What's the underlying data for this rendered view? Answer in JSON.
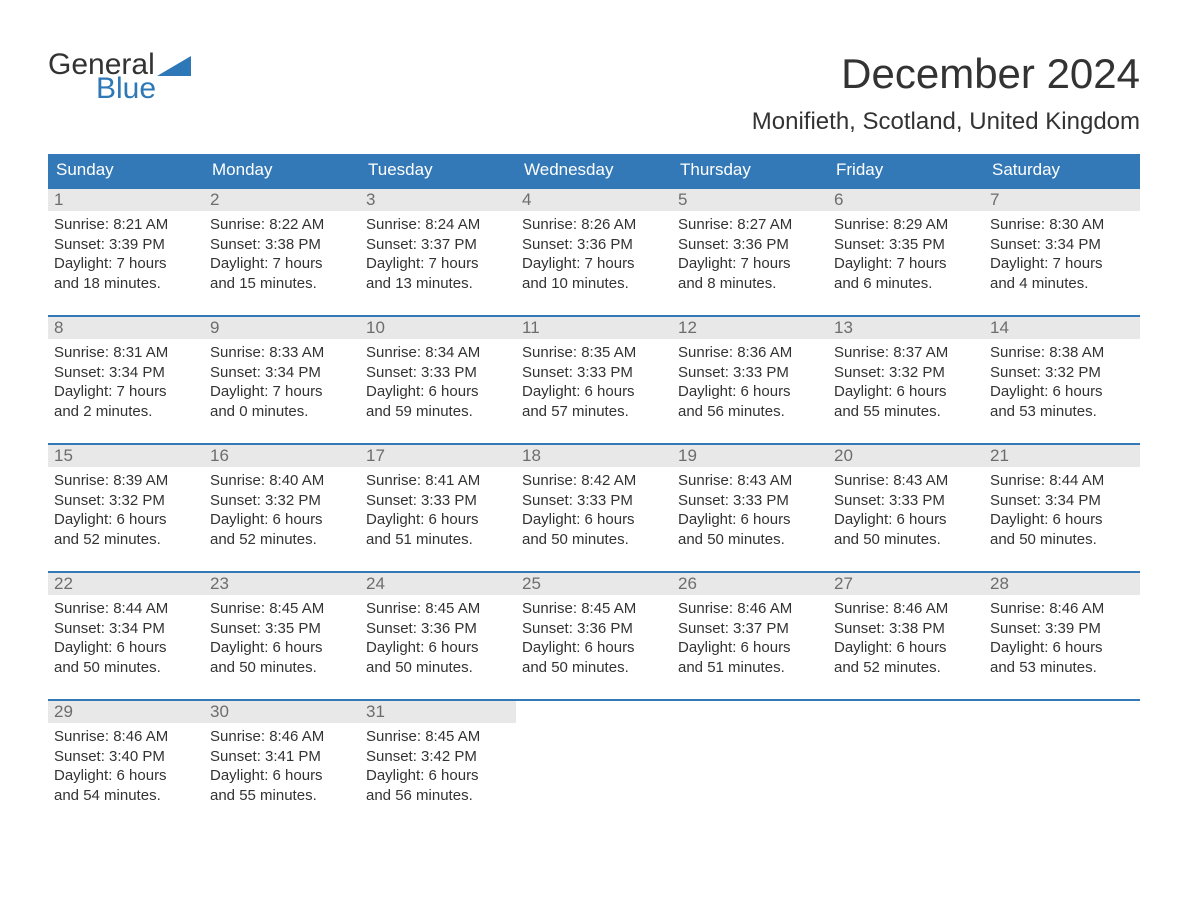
{
  "logo": {
    "text1": "General",
    "text2": "Blue"
  },
  "title": "December 2024",
  "subtitle": "Monifieth, Scotland, United Kingdom",
  "colors": {
    "header_bg": "#3379b7",
    "header_text": "#ffffff",
    "daynum_bg": "#e8e8e8",
    "daynum_text": "#6d6d6d",
    "body_text": "#333333",
    "logo_blue": "#2f78b7",
    "page_bg": "#ffffff"
  },
  "weekdays": [
    "Sunday",
    "Monday",
    "Tuesday",
    "Wednesday",
    "Thursday",
    "Friday",
    "Saturday"
  ],
  "days": [
    {
      "n": "1",
      "sunrise": "8:21 AM",
      "sunset": "3:39 PM",
      "dl1": "Daylight: 7 hours",
      "dl2": "and 18 minutes."
    },
    {
      "n": "2",
      "sunrise": "8:22 AM",
      "sunset": "3:38 PM",
      "dl1": "Daylight: 7 hours",
      "dl2": "and 15 minutes."
    },
    {
      "n": "3",
      "sunrise": "8:24 AM",
      "sunset": "3:37 PM",
      "dl1": "Daylight: 7 hours",
      "dl2": "and 13 minutes."
    },
    {
      "n": "4",
      "sunrise": "8:26 AM",
      "sunset": "3:36 PM",
      "dl1": "Daylight: 7 hours",
      "dl2": "and 10 minutes."
    },
    {
      "n": "5",
      "sunrise": "8:27 AM",
      "sunset": "3:36 PM",
      "dl1": "Daylight: 7 hours",
      "dl2": "and 8 minutes."
    },
    {
      "n": "6",
      "sunrise": "8:29 AM",
      "sunset": "3:35 PM",
      "dl1": "Daylight: 7 hours",
      "dl2": "and 6 minutes."
    },
    {
      "n": "7",
      "sunrise": "8:30 AM",
      "sunset": "3:34 PM",
      "dl1": "Daylight: 7 hours",
      "dl2": "and 4 minutes."
    },
    {
      "n": "8",
      "sunrise": "8:31 AM",
      "sunset": "3:34 PM",
      "dl1": "Daylight: 7 hours",
      "dl2": "and 2 minutes."
    },
    {
      "n": "9",
      "sunrise": "8:33 AM",
      "sunset": "3:34 PM",
      "dl1": "Daylight: 7 hours",
      "dl2": "and 0 minutes."
    },
    {
      "n": "10",
      "sunrise": "8:34 AM",
      "sunset": "3:33 PM",
      "dl1": "Daylight: 6 hours",
      "dl2": "and 59 minutes."
    },
    {
      "n": "11",
      "sunrise": "8:35 AM",
      "sunset": "3:33 PM",
      "dl1": "Daylight: 6 hours",
      "dl2": "and 57 minutes."
    },
    {
      "n": "12",
      "sunrise": "8:36 AM",
      "sunset": "3:33 PM",
      "dl1": "Daylight: 6 hours",
      "dl2": "and 56 minutes."
    },
    {
      "n": "13",
      "sunrise": "8:37 AM",
      "sunset": "3:32 PM",
      "dl1": "Daylight: 6 hours",
      "dl2": "and 55 minutes."
    },
    {
      "n": "14",
      "sunrise": "8:38 AM",
      "sunset": "3:32 PM",
      "dl1": "Daylight: 6 hours",
      "dl2": "and 53 minutes."
    },
    {
      "n": "15",
      "sunrise": "8:39 AM",
      "sunset": "3:32 PM",
      "dl1": "Daylight: 6 hours",
      "dl2": "and 52 minutes."
    },
    {
      "n": "16",
      "sunrise": "8:40 AM",
      "sunset": "3:32 PM",
      "dl1": "Daylight: 6 hours",
      "dl2": "and 52 minutes."
    },
    {
      "n": "17",
      "sunrise": "8:41 AM",
      "sunset": "3:33 PM",
      "dl1": "Daylight: 6 hours",
      "dl2": "and 51 minutes."
    },
    {
      "n": "18",
      "sunrise": "8:42 AM",
      "sunset": "3:33 PM",
      "dl1": "Daylight: 6 hours",
      "dl2": "and 50 minutes."
    },
    {
      "n": "19",
      "sunrise": "8:43 AM",
      "sunset": "3:33 PM",
      "dl1": "Daylight: 6 hours",
      "dl2": "and 50 minutes."
    },
    {
      "n": "20",
      "sunrise": "8:43 AM",
      "sunset": "3:33 PM",
      "dl1": "Daylight: 6 hours",
      "dl2": "and 50 minutes."
    },
    {
      "n": "21",
      "sunrise": "8:44 AM",
      "sunset": "3:34 PM",
      "dl1": "Daylight: 6 hours",
      "dl2": "and 50 minutes."
    },
    {
      "n": "22",
      "sunrise": "8:44 AM",
      "sunset": "3:34 PM",
      "dl1": "Daylight: 6 hours",
      "dl2": "and 50 minutes."
    },
    {
      "n": "23",
      "sunrise": "8:45 AM",
      "sunset": "3:35 PM",
      "dl1": "Daylight: 6 hours",
      "dl2": "and 50 minutes."
    },
    {
      "n": "24",
      "sunrise": "8:45 AM",
      "sunset": "3:36 PM",
      "dl1": "Daylight: 6 hours",
      "dl2": "and 50 minutes."
    },
    {
      "n": "25",
      "sunrise": "8:45 AM",
      "sunset": "3:36 PM",
      "dl1": "Daylight: 6 hours",
      "dl2": "and 50 minutes."
    },
    {
      "n": "26",
      "sunrise": "8:46 AM",
      "sunset": "3:37 PM",
      "dl1": "Daylight: 6 hours",
      "dl2": "and 51 minutes."
    },
    {
      "n": "27",
      "sunrise": "8:46 AM",
      "sunset": "3:38 PM",
      "dl1": "Daylight: 6 hours",
      "dl2": "and 52 minutes."
    },
    {
      "n": "28",
      "sunrise": "8:46 AM",
      "sunset": "3:39 PM",
      "dl1": "Daylight: 6 hours",
      "dl2": "and 53 minutes."
    },
    {
      "n": "29",
      "sunrise": "8:46 AM",
      "sunset": "3:40 PM",
      "dl1": "Daylight: 6 hours",
      "dl2": "and 54 minutes."
    },
    {
      "n": "30",
      "sunrise": "8:46 AM",
      "sunset": "3:41 PM",
      "dl1": "Daylight: 6 hours",
      "dl2": "and 55 minutes."
    },
    {
      "n": "31",
      "sunrise": "8:45 AM",
      "sunset": "3:42 PM",
      "dl1": "Daylight: 6 hours",
      "dl2": "and 56 minutes."
    }
  ],
  "labels": {
    "sunrise_prefix": "Sunrise: ",
    "sunset_prefix": "Sunset: "
  }
}
